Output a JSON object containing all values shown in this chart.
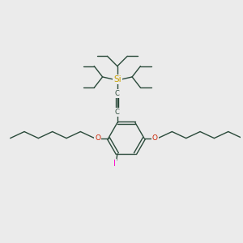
{
  "background_color": "#ebebeb",
  "bond_color": "#2a4a3a",
  "Si_color": "#c8a000",
  "O_color": "#cc2200",
  "I_color": "#ff00cc",
  "C_color": "#2a4a3a",
  "Si_label": "Si",
  "O_label": "O",
  "I_label": "I",
  "C_label": "C",
  "figsize": [
    3.0,
    3.0
  ],
  "dpi": 100
}
